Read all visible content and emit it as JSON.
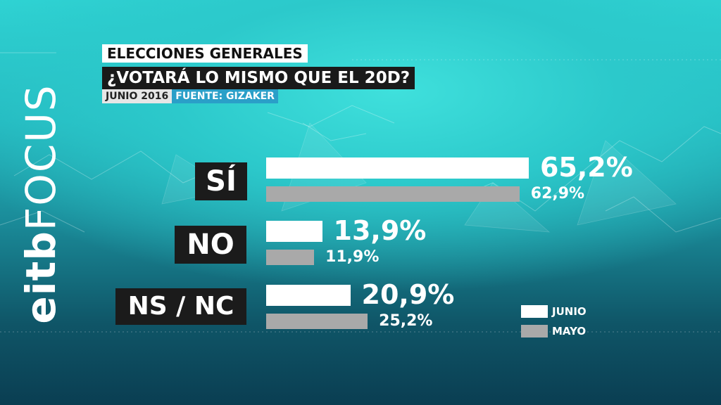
{
  "header": {
    "line1": "ELECCIONES GENERALES",
    "line2": "¿VOTARÁ LO MISMO QUE EL 20D?",
    "date": "JUNIO 2016",
    "source": "FUENTE: GIZAKER"
  },
  "logo": {
    "part1": "eitb",
    "part2": "FOCUS"
  },
  "colors": {
    "junio": "#ffffff",
    "mayo": "#a9a9a9",
    "label_bg": "#1b1b1b",
    "source_bg": "#2a9fc8"
  },
  "chart_data": {
    "type": "bar",
    "orientation": "horizontal",
    "title": "¿VOTARÁ LO MISMO QUE EL 20D?",
    "categories": [
      "SÍ",
      "NO",
      "NS / NC"
    ],
    "series": [
      {
        "name": "JUNIO",
        "values": [
          65.2,
          13.9,
          20.9
        ],
        "labels": [
          "65,2%",
          "13,9%",
          "20,9%"
        ]
      },
      {
        "name": "MAYO",
        "values": [
          62.9,
          11.9,
          25.2
        ],
        "labels": [
          "62,9%",
          "11,9%",
          "25,2%"
        ]
      }
    ],
    "legend": {
      "position": "bottom-right",
      "entries": [
        "JUNIO",
        "MAYO"
      ]
    }
  }
}
